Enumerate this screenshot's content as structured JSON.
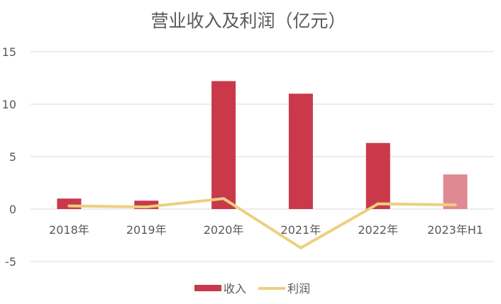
{
  "chart_data": {
    "type": "bar",
    "title": "营业收入及利润（亿元）",
    "categories": [
      "2018年",
      "2019年",
      "2020年",
      "2021年",
      "2022年",
      "2023年H1"
    ],
    "ylim": [
      -5,
      15
    ],
    "yticks": [
      15,
      10,
      5,
      0,
      -5
    ],
    "ytick_labels": [
      "15",
      "10",
      "5",
      "0",
      "-5"
    ],
    "grid": true,
    "legend_position": "bottom",
    "series": [
      {
        "name": "收入",
        "type": "bar",
        "color": "#c9394a",
        "highlight_color": "#df8a92",
        "highlight_index": 5,
        "values": [
          1.0,
          0.8,
          12.2,
          11.0,
          6.3,
          3.3
        ]
      },
      {
        "name": "利润",
        "type": "line",
        "color": "#ecd07f",
        "values": [
          0.3,
          0.2,
          1.0,
          -3.7,
          0.5,
          0.4
        ]
      }
    ]
  }
}
